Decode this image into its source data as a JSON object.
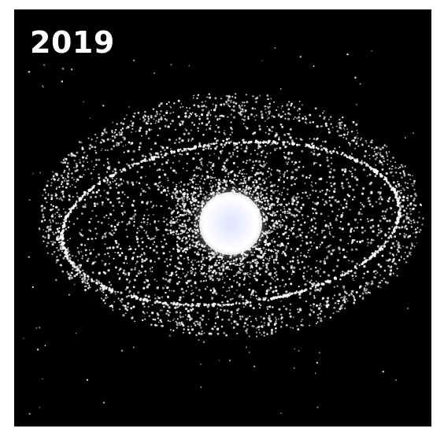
{
  "year_label": "2019",
  "scene": {
    "subject": "orbital-debris-around-earth",
    "background_color": "#000000",
    "debris_color": "#ffffff",
    "earth_glow_color": "#ffffff",
    "earth_tint_color": "#cfd8ff"
  }
}
